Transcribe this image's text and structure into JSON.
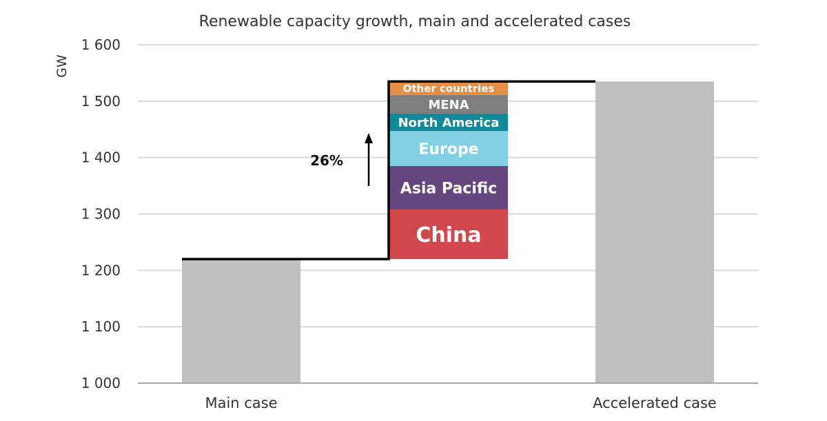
{
  "chart_data": {
    "type": "bar",
    "title": "Renewable capacity growth, main and accelerated cases",
    "ylabel": "GW",
    "xlabel": "",
    "ylim": [
      1000,
      1600
    ],
    "yticks": [
      1000,
      1100,
      1200,
      1300,
      1400,
      1500,
      1600
    ],
    "ytick_labels": [
      "1 000",
      "1 100",
      "1 200",
      "1 300",
      "1 400",
      "1 500",
      "1 600"
    ],
    "grid": true,
    "categories": [
      "Main case",
      "Accelerated case"
    ],
    "values": [
      1220,
      1535
    ],
    "bar_color": "#bfbfbf",
    "increment": {
      "annotation": "26%",
      "base": 1220,
      "segments": [
        {
          "name": "China",
          "value": 88,
          "color": "#d0474c"
        },
        {
          "name": "Asia Pacific",
          "value": 77,
          "color": "#65467f"
        },
        {
          "name": "Europe",
          "value": 62,
          "color": "#82d0e3"
        },
        {
          "name": "North America",
          "value": 31,
          "color": "#108a9a"
        },
        {
          "name": "MENA",
          "value": 33,
          "color": "#7f7f7f"
        },
        {
          "name": "Other countries",
          "value": 24,
          "color": "#e38d47"
        }
      ]
    }
  }
}
